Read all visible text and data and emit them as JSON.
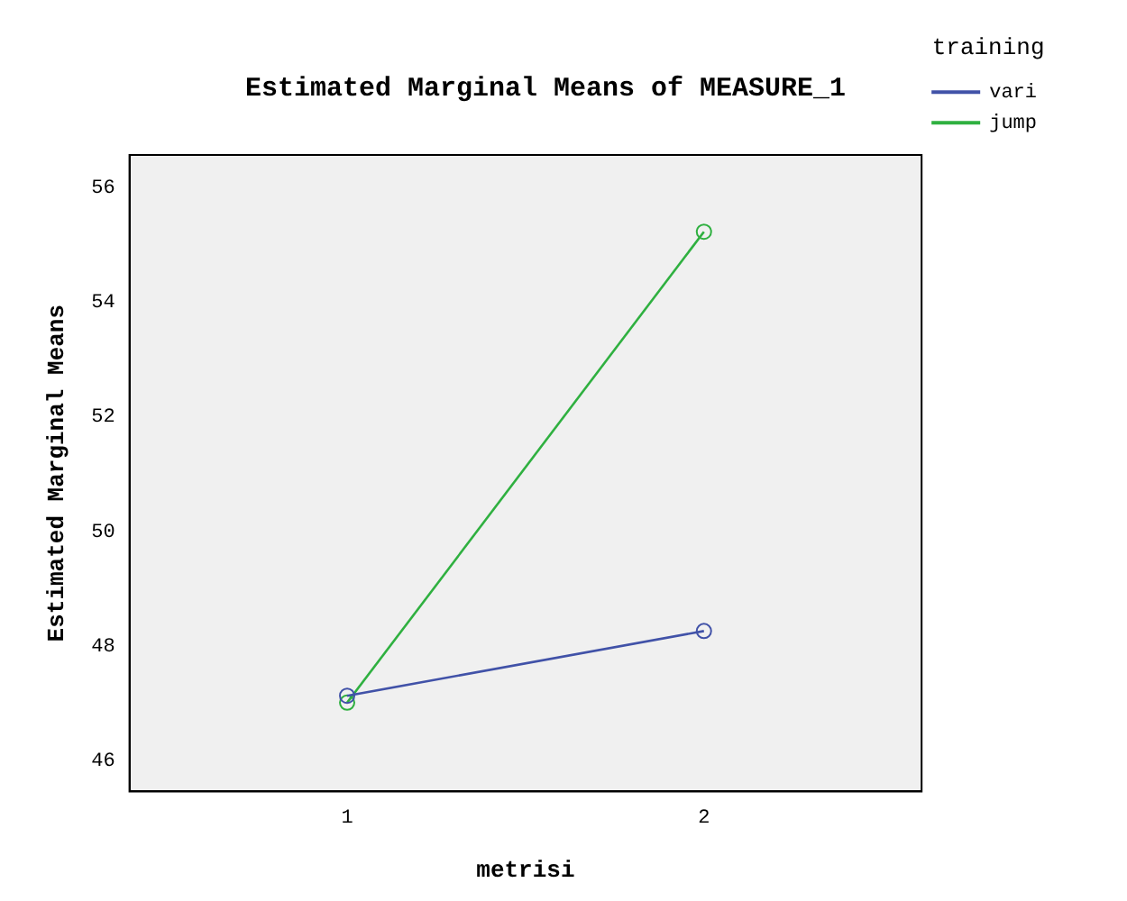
{
  "chart_data": {
    "type": "line",
    "title": "Estimated Marginal Means of MEASURE_1",
    "xlabel": "metrisi",
    "ylabel": "Estimated Marginal Means",
    "legend_title": "training",
    "x": [
      1,
      2
    ],
    "series": [
      {
        "name": "vari",
        "color": "#4152a8",
        "values": [
          47.13,
          48.26
        ]
      },
      {
        "name": "jump",
        "color": "#2fb040",
        "values": [
          47.01,
          55.23
        ]
      }
    ],
    "xlim": [
      0.39,
      2.61
    ],
    "xticks": [
      1,
      2
    ],
    "ylim": [
      45.46,
      56.57
    ],
    "yticks": [
      46,
      48,
      50,
      52,
      54,
      56
    ],
    "grid": false,
    "legend": "right",
    "marker": "circle",
    "line_style": "solid"
  }
}
